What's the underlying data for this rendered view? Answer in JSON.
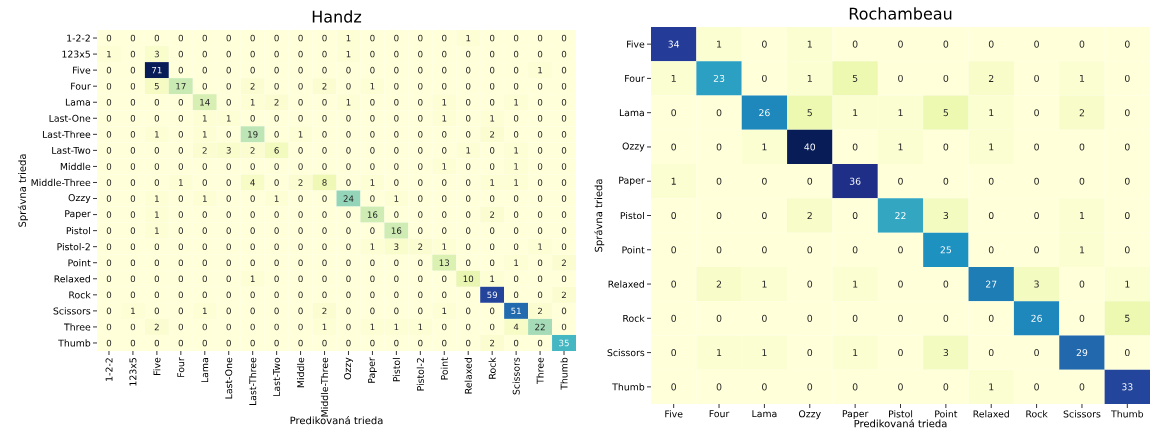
{
  "chart_data": [
    {
      "type": "heatmap",
      "title": "Handz",
      "xlabel": "Predikovaná trieda",
      "ylabel": "Správna trieda",
      "data_labels": true,
      "categories": [
        "1-2-2",
        "123x5",
        "Five",
        "Four",
        "Lama",
        "Last-One",
        "Last-Three",
        "Last-Two",
        "Middle",
        "Middle-Three",
        "Ozzy",
        "Paper",
        "Pistol",
        "Pistol-2",
        "Point",
        "Relaxed",
        "Rock",
        "Scissors",
        "Three",
        "Thumb"
      ],
      "y_categories": [
        "1-2-2",
        "123x5",
        "Five",
        "Four",
        "Lama",
        "Last-One",
        "Last-Three",
        "Last-Two",
        "Middle",
        "Middle-Three",
        "Ozzy",
        "Paper",
        "Pistol",
        "Pistol-2",
        "Point",
        "Relaxed",
        "Rock",
        "Scissors",
        "Three",
        "Thumb"
      ],
      "cells": [
        [
          0,
          0,
          0,
          0,
          0,
          0,
          0,
          0,
          0,
          0,
          1,
          0,
          0,
          0,
          0,
          1,
          0,
          0,
          0,
          0
        ],
        [
          1,
          0,
          3,
          0,
          0,
          0,
          0,
          0,
          0,
          0,
          1,
          0,
          0,
          0,
          0,
          0,
          0,
          0,
          0,
          0
        ],
        [
          0,
          0,
          71,
          0,
          0,
          0,
          0,
          0,
          0,
          0,
          0,
          0,
          0,
          0,
          0,
          0,
          0,
          0,
          1,
          0
        ],
        [
          0,
          0,
          5,
          17,
          0,
          0,
          2,
          0,
          0,
          2,
          0,
          1,
          0,
          0,
          0,
          0,
          0,
          0,
          0,
          0
        ],
        [
          0,
          0,
          0,
          0,
          14,
          0,
          1,
          2,
          0,
          0,
          1,
          0,
          0,
          0,
          1,
          0,
          0,
          1,
          0,
          0
        ],
        [
          0,
          0,
          0,
          0,
          1,
          1,
          0,
          0,
          0,
          0,
          0,
          0,
          0,
          0,
          1,
          0,
          1,
          0,
          0,
          0
        ],
        [
          0,
          0,
          1,
          0,
          1,
          0,
          19,
          0,
          1,
          0,
          0,
          0,
          0,
          0,
          0,
          0,
          2,
          0,
          0,
          0
        ],
        [
          0,
          0,
          0,
          0,
          2,
          3,
          2,
          6,
          0,
          0,
          0,
          0,
          0,
          0,
          0,
          1,
          0,
          1,
          0,
          0
        ],
        [
          0,
          0,
          0,
          0,
          0,
          0,
          0,
          0,
          0,
          0,
          0,
          0,
          0,
          0,
          1,
          0,
          0,
          1,
          0,
          0
        ],
        [
          0,
          0,
          0,
          1,
          0,
          0,
          4,
          0,
          2,
          8,
          0,
          1,
          0,
          0,
          0,
          0,
          1,
          1,
          0,
          0
        ],
        [
          0,
          0,
          1,
          0,
          1,
          0,
          0,
          1,
          0,
          0,
          24,
          0,
          1,
          0,
          0,
          0,
          0,
          0,
          0,
          0
        ],
        [
          0,
          0,
          1,
          0,
          0,
          0,
          0,
          0,
          0,
          0,
          0,
          16,
          0,
          0,
          0,
          0,
          2,
          0,
          0,
          0
        ],
        [
          0,
          0,
          1,
          0,
          0,
          0,
          0,
          0,
          0,
          0,
          0,
          0,
          16,
          0,
          0,
          0,
          0,
          0,
          0,
          0
        ],
        [
          0,
          0,
          0,
          0,
          0,
          0,
          0,
          0,
          0,
          0,
          0,
          1,
          3,
          2,
          1,
          0,
          0,
          0,
          1,
          0
        ],
        [
          0,
          0,
          0,
          0,
          0,
          0,
          0,
          0,
          0,
          0,
          0,
          0,
          0,
          0,
          13,
          0,
          0,
          1,
          0,
          2
        ],
        [
          0,
          0,
          0,
          0,
          0,
          0,
          1,
          0,
          0,
          0,
          0,
          0,
          0,
          0,
          0,
          10,
          1,
          0,
          0,
          0
        ],
        [
          0,
          0,
          0,
          0,
          0,
          0,
          0,
          0,
          0,
          0,
          0,
          0,
          0,
          0,
          0,
          0,
          59,
          0,
          0,
          2
        ],
        [
          0,
          1,
          0,
          0,
          1,
          0,
          0,
          0,
          0,
          2,
          0,
          0,
          0,
          0,
          1,
          0,
          0,
          51,
          2,
          0
        ],
        [
          0,
          0,
          2,
          0,
          0,
          0,
          0,
          0,
          0,
          1,
          0,
          1,
          1,
          1,
          0,
          0,
          0,
          4,
          22,
          0
        ],
        [
          0,
          0,
          0,
          0,
          0,
          0,
          0,
          0,
          0,
          0,
          0,
          0,
          0,
          0,
          0,
          0,
          2,
          0,
          0,
          35
        ]
      ]
    },
    {
      "type": "heatmap",
      "title": "Rochambeau",
      "xlabel": "Predikovaná trieda",
      "ylabel": "Správna trieda",
      "data_labels": true,
      "categories": [
        "Five",
        "Four",
        "Lama",
        "Ozzy",
        "Paper",
        "Pistol",
        "Point",
        "Relaxed",
        "Rock",
        "Scissors",
        "Thumb"
      ],
      "y_categories": [
        "Five",
        "Four",
        "Lama",
        "Ozzy",
        "Paper",
        "Pistol",
        "Point",
        "Relaxed",
        "Rock",
        "Scissors",
        "Thumb"
      ],
      "cells": [
        [
          34,
          1,
          0,
          1,
          0,
          0,
          0,
          0,
          0,
          0,
          0
        ],
        [
          1,
          23,
          0,
          1,
          5,
          0,
          0,
          2,
          0,
          1,
          0
        ],
        [
          0,
          0,
          26,
          5,
          1,
          1,
          5,
          1,
          0,
          2,
          0
        ],
        [
          0,
          0,
          1,
          40,
          0,
          1,
          0,
          1,
          0,
          0,
          0
        ],
        [
          1,
          0,
          0,
          0,
          36,
          0,
          0,
          0,
          0,
          0,
          0
        ],
        [
          0,
          0,
          0,
          2,
          0,
          22,
          3,
          0,
          0,
          1,
          0
        ],
        [
          0,
          0,
          0,
          0,
          0,
          0,
          25,
          0,
          0,
          1,
          0
        ],
        [
          0,
          2,
          1,
          0,
          1,
          0,
          0,
          27,
          3,
          0,
          1
        ],
        [
          0,
          0,
          0,
          0,
          0,
          0,
          0,
          0,
          26,
          0,
          5
        ],
        [
          0,
          1,
          1,
          0,
          1,
          0,
          3,
          0,
          0,
          29,
          0
        ],
        [
          0,
          0,
          0,
          0,
          0,
          0,
          0,
          1,
          0,
          0,
          33
        ]
      ]
    }
  ]
}
